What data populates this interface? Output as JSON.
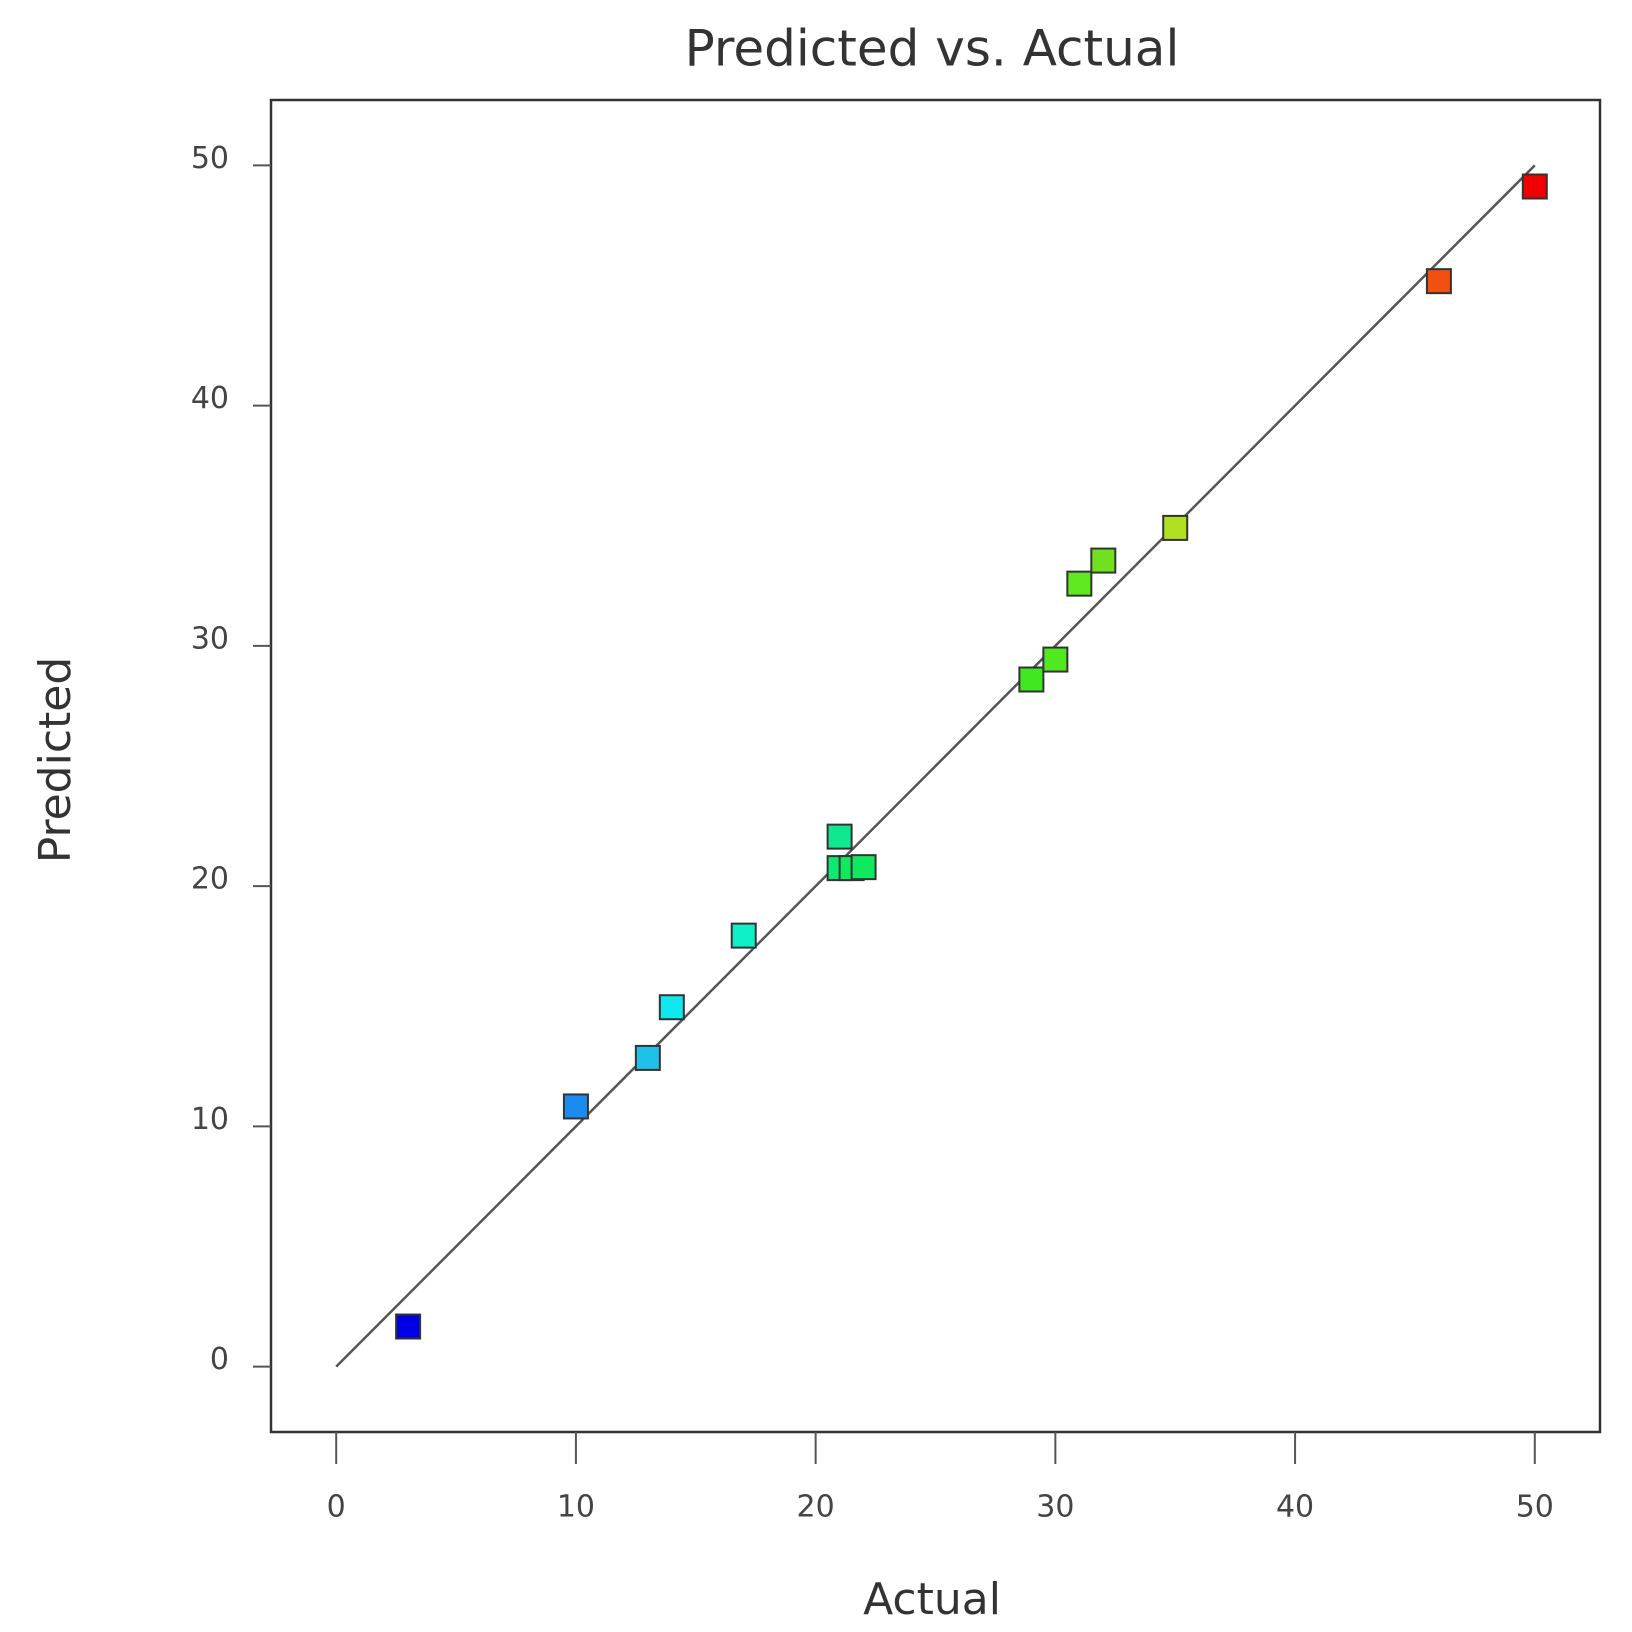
{
  "chart_data": {
    "type": "scatter",
    "title": "Predicted vs. Actual",
    "x_label": "Actual",
    "y_label": "Predicted",
    "x": [
      3,
      10,
      13,
      14,
      17,
      21,
      21,
      21.5,
      22,
      29,
      30,
      31,
      32,
      35,
      46,
      50
    ],
    "y": [
      1.67,
      10.83,
      12.85,
      14.96,
      17.94,
      22.06,
      20.75,
      20.75,
      20.79,
      28.6,
      29.43,
      32.59,
      33.55,
      34.91,
      45.18,
      49.12
    ],
    "colors": [
      "#0000e8",
      "#1a8cf0",
      "#20c0e8",
      "#10e8f0",
      "#10f0c8",
      "#10e890",
      "#10e870",
      "#10e860",
      "#10e860",
      "#40e820",
      "#50e820",
      "#60e820",
      "#70e020",
      "#b0e020",
      "#f05010",
      "#f00000"
    ],
    "reference_line": {
      "x": [
        0,
        50
      ],
      "y": [
        0,
        50
      ]
    },
    "xlim": [
      -2.72,
      52.72
    ],
    "ylim": [
      -2.72,
      52.72
    ],
    "xticks": [
      0,
      10,
      20,
      30,
      40,
      50
    ],
    "yticks": [
      0,
      10,
      20,
      30,
      40,
      50
    ]
  }
}
